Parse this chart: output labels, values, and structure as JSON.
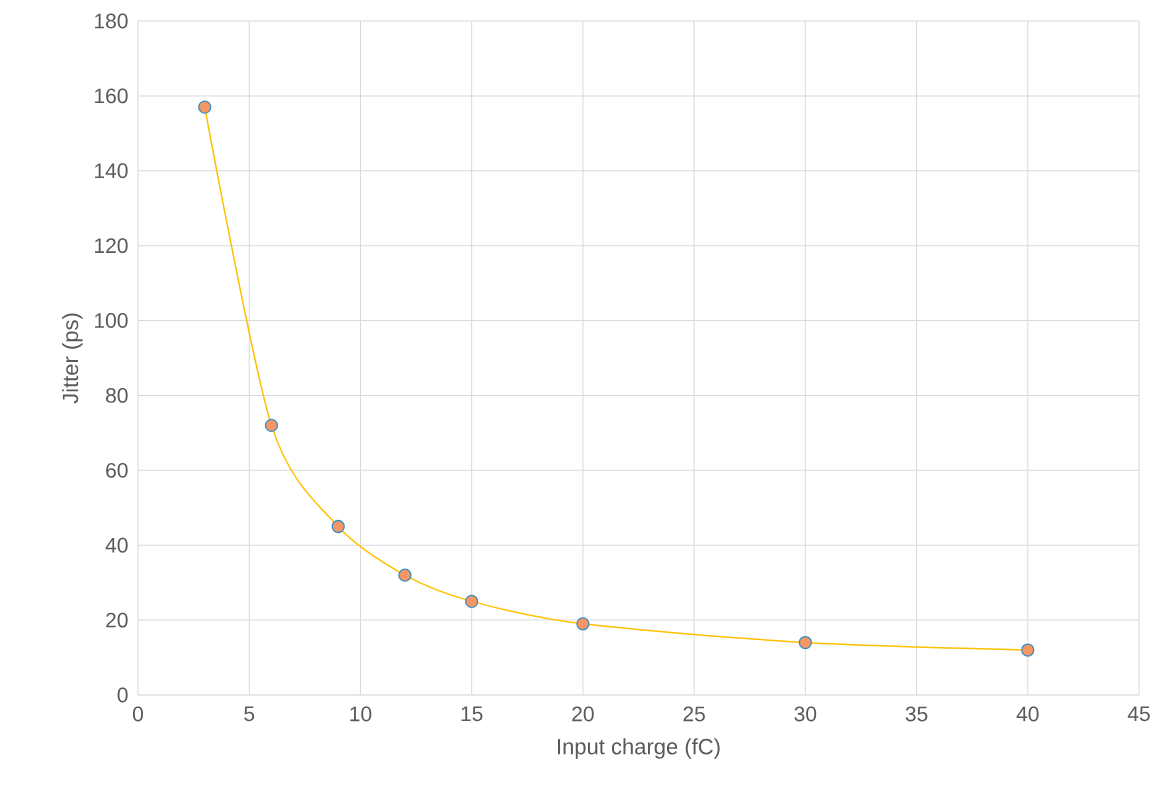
{
  "chart_data": {
    "type": "line",
    "xlabel": "Input charge (fC)",
    "ylabel": "Jitter (ps)",
    "x": [
      3,
      6,
      9,
      12,
      15,
      20,
      30,
      40
    ],
    "series": [
      {
        "color": "#ffc000",
        "values": [
          157,
          72,
          45,
          32,
          25,
          19,
          14,
          12
        ]
      }
    ],
    "xlim": [
      0,
      45
    ],
    "xticks": [
      0,
      5,
      10,
      15,
      20,
      25,
      30,
      35,
      40,
      45
    ],
    "ylim": [
      0,
      180
    ],
    "yticks": [
      0,
      20,
      40,
      60,
      80,
      100,
      120,
      140,
      160,
      180
    ],
    "grid": true,
    "marker": "circle",
    "line_style": "solid"
  }
}
